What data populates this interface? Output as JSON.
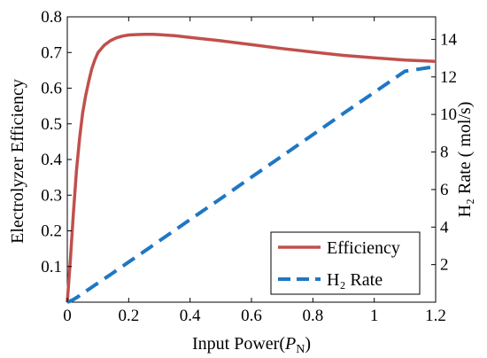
{
  "chart_data": {
    "type": "line",
    "x": [
      0,
      0.01,
      0.02,
      0.03,
      0.04,
      0.05,
      0.06,
      0.07,
      0.08,
      0.09,
      0.1,
      0.12,
      0.14,
      0.16,
      0.18,
      0.2,
      0.22,
      0.25,
      0.28,
      0.3,
      0.35,
      0.4,
      0.5,
      0.6,
      0.7,
      0.8,
      0.9,
      1.0,
      1.1,
      1.2
    ],
    "xlabel": "Input Power(P_N)",
    "xlabel_main": "Input Power(",
    "xlabel_var": "P",
    "xlabel_sub": "N",
    "xlabel_close": ")",
    "xlim": [
      0,
      1.2
    ],
    "xticks": [
      0,
      0.2,
      0.4,
      0.6,
      0.8,
      1,
      1.2
    ],
    "xtick_labels": [
      "0",
      "0.2",
      "0.4",
      "0.6",
      "0.8",
      "1",
      "1.2"
    ],
    "ylabel": "Electrolyzer Efficiency",
    "ylim": [
      0,
      0.8
    ],
    "yticks": [
      0.1,
      0.2,
      0.3,
      0.4,
      0.5,
      0.6,
      0.7,
      0.8
    ],
    "ytick_labels": [
      "0.1",
      "0.2",
      "0.3",
      "0.4",
      "0.5",
      "0.6",
      "0.7",
      "0.8"
    ],
    "y2label": "H₂ Rate ( mol/s)",
    "y2lim": [
      0,
      15.2
    ],
    "y2ticks": [
      2,
      4,
      6,
      8,
      10,
      12,
      14
    ],
    "y2tick_labels": [
      "2",
      "4",
      "6",
      "8",
      "10",
      "12",
      "14"
    ],
    "grid": false,
    "legend_position": "bottom-right",
    "series": [
      {
        "name": "Efficiency",
        "axis": "left",
        "color": "#c0504d",
        "style": "solid",
        "values": [
          0,
          0.12,
          0.25,
          0.37,
          0.46,
          0.53,
          0.58,
          0.62,
          0.655,
          0.68,
          0.7,
          0.72,
          0.733,
          0.741,
          0.746,
          0.749,
          0.75,
          0.751,
          0.751,
          0.75,
          0.747,
          0.742,
          0.733,
          0.722,
          0.711,
          0.701,
          0.692,
          0.685,
          0.679,
          0.675
        ]
      },
      {
        "name": "H₂ Rate",
        "axis": "right",
        "color": "#1f77c4",
        "style": "dashed",
        "values": [
          0,
          0.06,
          0.14,
          0.24,
          0.35,
          0.47,
          0.58,
          0.69,
          0.8,
          0.91,
          1.02,
          1.24,
          1.46,
          1.69,
          1.91,
          2.14,
          2.36,
          2.7,
          3.04,
          3.27,
          3.83,
          4.4,
          5.52,
          6.66,
          7.79,
          8.92,
          10.06,
          11.18,
          12.3,
          12.55
        ]
      }
    ]
  }
}
